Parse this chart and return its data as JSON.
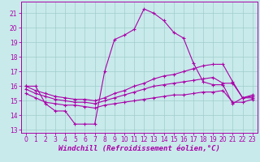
{
  "title": "",
  "xlabel": "Windchill (Refroidissement éolien,°C)",
  "ylabel": "",
  "background_color": "#c8eaea",
  "grid_color": "#a0cccc",
  "line_color": "#aa00aa",
  "x_ticks": [
    0,
    1,
    2,
    3,
    4,
    5,
    6,
    7,
    8,
    9,
    10,
    11,
    12,
    13,
    14,
    15,
    16,
    17,
    18,
    19,
    20,
    21,
    22,
    23
  ],
  "y_ticks": [
    13,
    14,
    15,
    16,
    17,
    18,
    19,
    20,
    21
  ],
  "xlim": [
    -0.5,
    23.5
  ],
  "ylim": [
    12.8,
    21.8
  ],
  "line1_x": [
    0,
    1,
    2,
    3,
    4,
    5,
    6,
    7,
    8,
    9,
    10,
    11,
    12,
    13,
    14,
    15,
    16,
    17,
    18,
    19,
    20,
    21,
    22,
    23
  ],
  "line1_y": [
    16.0,
    16.0,
    14.8,
    14.3,
    14.3,
    13.4,
    13.4,
    13.4,
    17.0,
    19.2,
    19.5,
    19.9,
    21.3,
    21.0,
    20.5,
    19.7,
    19.3,
    17.6,
    16.3,
    16.1,
    16.1,
    14.8,
    15.2,
    15.2
  ],
  "line2_x": [
    0,
    1,
    2,
    3,
    4,
    5,
    6,
    7,
    8,
    9,
    10,
    11,
    12,
    13,
    14,
    15,
    16,
    17,
    18,
    19,
    20,
    21,
    22,
    23
  ],
  "line2_y": [
    16.0,
    15.7,
    15.5,
    15.3,
    15.2,
    15.1,
    15.1,
    15.0,
    15.2,
    15.5,
    15.7,
    16.0,
    16.2,
    16.5,
    16.7,
    16.8,
    17.0,
    17.2,
    17.4,
    17.5,
    17.5,
    16.3,
    15.2,
    15.4
  ],
  "line3_x": [
    0,
    1,
    2,
    3,
    4,
    5,
    6,
    7,
    8,
    9,
    10,
    11,
    12,
    13,
    14,
    15,
    16,
    17,
    18,
    19,
    20,
    21,
    22,
    23
  ],
  "line3_y": [
    15.8,
    15.5,
    15.3,
    15.1,
    15.0,
    14.9,
    14.9,
    14.8,
    15.0,
    15.2,
    15.4,
    15.6,
    15.8,
    16.0,
    16.1,
    16.2,
    16.3,
    16.4,
    16.5,
    16.6,
    16.2,
    16.2,
    15.2,
    15.3
  ],
  "line4_x": [
    0,
    1,
    2,
    3,
    4,
    5,
    6,
    7,
    8,
    9,
    10,
    11,
    12,
    13,
    14,
    15,
    16,
    17,
    18,
    19,
    20,
    21,
    22,
    23
  ],
  "line4_y": [
    15.5,
    15.2,
    14.9,
    14.8,
    14.7,
    14.7,
    14.6,
    14.5,
    14.7,
    14.8,
    14.9,
    15.0,
    15.1,
    15.2,
    15.3,
    15.4,
    15.4,
    15.5,
    15.6,
    15.6,
    15.7,
    14.9,
    14.9,
    15.1
  ],
  "marker": "+",
  "markersize": 3.5,
  "linewidth": 0.8,
  "xlabel_fontsize": 6.5,
  "tick_fontsize": 5.5
}
